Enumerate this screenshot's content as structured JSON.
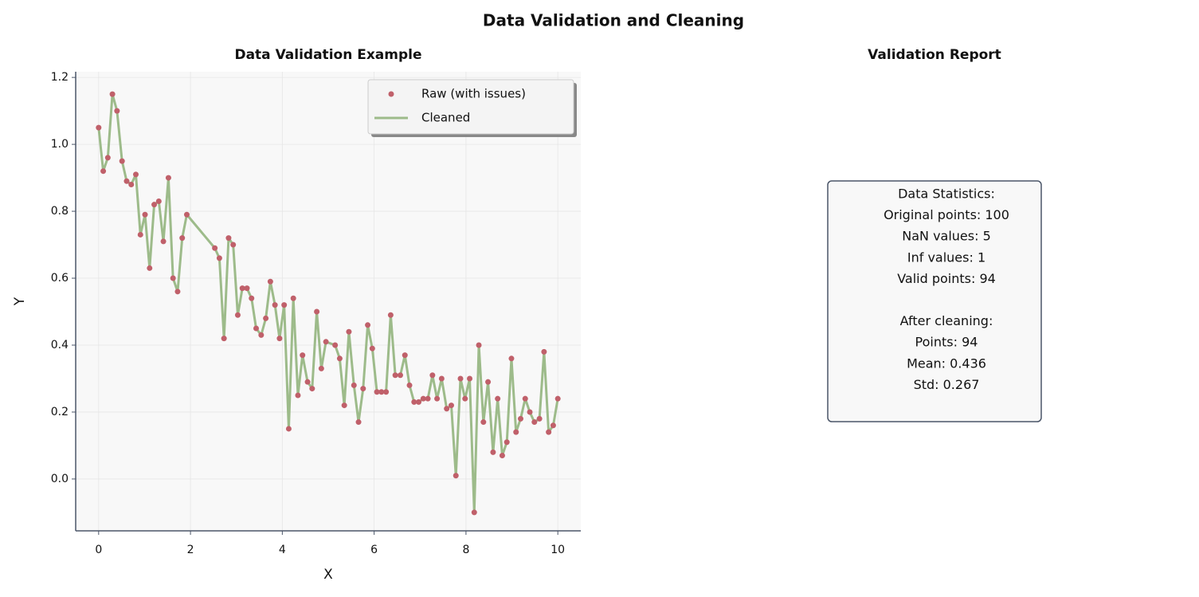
{
  "title": "Data Validation and Cleaning",
  "chart_data": {
    "type": "line",
    "title": "Data Validation Example",
    "x_label": "X",
    "y_label": "Y",
    "x": [
      0,
      0.1,
      0.2,
      0.3,
      0.4,
      0.51,
      0.61,
      0.71,
      0.81,
      0.91,
      1.01,
      1.11,
      1.21,
      1.31,
      1.41,
      1.52,
      1.62,
      1.72,
      1.82,
      1.92,
      2.53,
      2.63,
      2.73,
      2.83,
      2.93,
      3.03,
      3.13,
      3.23,
      3.33,
      3.43,
      3.54,
      3.64,
      3.74,
      3.84,
      3.94,
      4.04,
      4.14,
      4.24,
      4.34,
      4.44,
      4.55,
      4.65,
      4.75,
      4.85,
      4.95,
      5.15,
      5.25,
      5.35,
      5.45,
      5.56,
      5.66,
      5.76,
      5.86,
      5.96,
      6.06,
      6.16,
      6.26,
      6.36,
      6.46,
      6.57,
      6.67,
      6.77,
      6.87,
      6.97,
      7.07,
      7.17,
      7.27,
      7.37,
      7.47,
      7.58,
      7.68,
      7.78,
      7.88,
      7.98,
      8.08,
      8.18,
      8.28,
      8.38,
      8.48,
      8.59,
      8.69,
      8.79,
      8.89,
      8.99,
      9.09,
      9.19,
      9.29,
      9.39,
      9.49,
      9.6,
      9.7,
      9.8,
      9.9,
      10
    ],
    "series": [
      {
        "name": "Raw (with issues)",
        "color": "#c0606a",
        "style": "markers",
        "values": [
          1.05,
          0.92,
          0.96,
          1.15,
          1.1,
          0.95,
          0.89,
          0.88,
          0.91,
          0.73,
          0.79,
          0.63,
          0.82,
          0.83,
          0.71,
          0.9,
          0.6,
          0.56,
          0.72,
          0.79,
          0.69,
          0.66,
          0.42,
          0.72,
          0.7,
          0.49,
          0.57,
          0.57,
          0.54,
          0.45,
          0.43,
          0.48,
          0.59,
          0.52,
          0.42,
          0.52,
          0.15,
          0.54,
          0.25,
          0.37,
          0.29,
          0.27,
          0.5,
          0.33,
          0.41,
          0.4,
          0.36,
          0.22,
          0.44,
          0.28,
          0.17,
          0.27,
          0.46,
          0.39,
          0.26,
          0.26,
          0.26,
          0.49,
          0.31,
          0.31,
          0.37,
          0.28,
          0.23,
          0.23,
          0.24,
          0.24,
          0.31,
          0.24,
          0.3,
          0.21,
          0.22,
          0.01,
          0.3,
          0.24,
          0.3,
          -0.1,
          0.4,
          0.17,
          0.29,
          0.08,
          0.24,
          0.07,
          0.11,
          0.36,
          0.14,
          0.18,
          0.24,
          0.2,
          0.17,
          0.18,
          0.38,
          0.14,
          0.16,
          0.24
        ]
      },
      {
        "name": "Cleaned",
        "color": "#9dbb8a",
        "style": "line",
        "values": [
          1.05,
          0.92,
          0.96,
          1.15,
          1.1,
          0.95,
          0.89,
          0.88,
          0.91,
          0.73,
          0.79,
          0.63,
          0.82,
          0.83,
          0.71,
          0.9,
          0.6,
          0.56,
          0.72,
          0.79,
          0.69,
          0.66,
          0.42,
          0.72,
          0.7,
          0.49,
          0.57,
          0.57,
          0.54,
          0.45,
          0.43,
          0.48,
          0.59,
          0.52,
          0.42,
          0.52,
          0.15,
          0.54,
          0.25,
          0.37,
          0.29,
          0.27,
          0.5,
          0.33,
          0.41,
          0.4,
          0.36,
          0.22,
          0.44,
          0.28,
          0.17,
          0.27,
          0.46,
          0.39,
          0.26,
          0.26,
          0.26,
          0.49,
          0.31,
          0.31,
          0.37,
          0.28,
          0.23,
          0.23,
          0.24,
          0.24,
          0.31,
          0.24,
          0.3,
          0.21,
          0.22,
          0.01,
          0.3,
          0.24,
          0.3,
          -0.1,
          0.4,
          0.17,
          0.29,
          0.08,
          0.24,
          0.07,
          0.11,
          0.36,
          0.14,
          0.18,
          0.24,
          0.2,
          0.17,
          0.18,
          0.38,
          0.14,
          0.16,
          0.24
        ]
      }
    ],
    "xlim": [
      -0.5,
      10.5
    ],
    "xticks": [
      0,
      2,
      4,
      6,
      8,
      10
    ],
    "ylim": [
      -0.155,
      1.217
    ],
    "yticks": [
      {
        "value": 0,
        "label": "0.0"
      },
      0.2,
      0.4,
      0.6,
      0.8,
      {
        "value": 1,
        "label": "1.0"
      },
      1.2
    ],
    "grid": true,
    "legend": "upper right"
  },
  "report": {
    "title": "Validation Report",
    "statistics": [
      "Data Statistics:",
      "Original points: 100",
      "NaN values: 5",
      "Inf values: 1",
      "Valid points: 94"
    ],
    "after_cleaning": [
      "After cleaning:",
      "Points: 94",
      "Mean: 0.436",
      "Std: 0.267"
    ]
  }
}
